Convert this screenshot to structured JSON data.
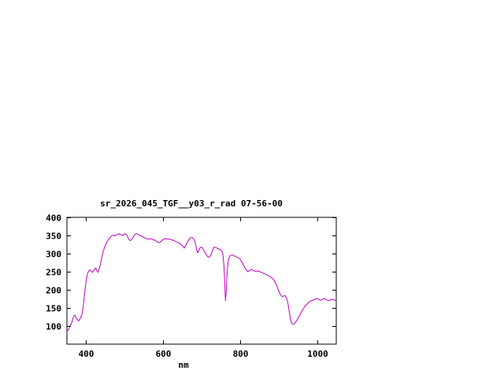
{
  "chart": {
    "line_color": "#c000c0",
    "axis_color": "#000000",
    "background": "#ffffff"
  },
  "chart_data": {
    "type": "line",
    "title": "sr_2026_045_TGF__y03_r_rad 07-56-00",
    "xlabel": "nm",
    "ylabel": "",
    "xlim": [
      350,
      1050
    ],
    "ylim": [
      50,
      400
    ],
    "xticks": [
      400,
      600,
      800,
      1000
    ],
    "yticks": [
      100,
      150,
      200,
      250,
      300,
      350,
      400
    ],
    "grid": false,
    "legend": "none",
    "series": [
      {
        "name": "sr_2026_045_TGF__y03_r_rad",
        "color": "#c000c0",
        "points": [
          [
            350,
            85
          ],
          [
            355,
            92
          ],
          [
            358,
            100
          ],
          [
            362,
            108
          ],
          [
            365,
            118
          ],
          [
            368,
            128
          ],
          [
            371,
            130
          ],
          [
            374,
            122
          ],
          [
            377,
            118
          ],
          [
            380,
            114
          ],
          [
            383,
            118
          ],
          [
            386,
            124
          ],
          [
            389,
            132
          ],
          [
            392,
            150
          ],
          [
            395,
            180
          ],
          [
            398,
            210
          ],
          [
            401,
            232
          ],
          [
            404,
            246
          ],
          [
            407,
            252
          ],
          [
            410,
            255
          ],
          [
            413,
            252
          ],
          [
            416,
            248
          ],
          [
            419,
            252
          ],
          [
            422,
            257
          ],
          [
            425,
            260
          ],
          [
            428,
            252
          ],
          [
            431,
            248
          ],
          [
            434,
            258
          ],
          [
            437,
            270
          ],
          [
            440,
            288
          ],
          [
            444,
            305
          ],
          [
            448,
            318
          ],
          [
            452,
            328
          ],
          [
            456,
            336
          ],
          [
            460,
            342
          ],
          [
            465,
            348
          ],
          [
            470,
            351
          ],
          [
            475,
            349
          ],
          [
            480,
            353
          ],
          [
            485,
            355
          ],
          [
            490,
            352
          ],
          [
            495,
            350
          ],
          [
            500,
            355
          ],
          [
            505,
            352
          ],
          [
            508,
            345
          ],
          [
            512,
            338
          ],
          [
            516,
            336
          ],
          [
            520,
            342
          ],
          [
            525,
            350
          ],
          [
            530,
            355
          ],
          [
            535,
            353
          ],
          [
            540,
            350
          ],
          [
            545,
            348
          ],
          [
            550,
            345
          ],
          [
            555,
            342
          ],
          [
            560,
            340
          ],
          [
            565,
            341
          ],
          [
            570,
            340
          ],
          [
            575,
            338
          ],
          [
            580,
            336
          ],
          [
            585,
            332
          ],
          [
            590,
            330
          ],
          [
            595,
            334
          ],
          [
            600,
            339
          ],
          [
            605,
            341
          ],
          [
            610,
            340
          ],
          [
            615,
            340
          ],
          [
            620,
            339
          ],
          [
            625,
            337
          ],
          [
            630,
            335
          ],
          [
            635,
            332
          ],
          [
            640,
            330
          ],
          [
            645,
            327
          ],
          [
            650,
            322
          ],
          [
            655,
            315
          ],
          [
            660,
            325
          ],
          [
            665,
            335
          ],
          [
            670,
            343
          ],
          [
            675,
            345
          ],
          [
            680,
            340
          ],
          [
            684,
            328
          ],
          [
            687,
            310
          ],
          [
            690,
            302
          ],
          [
            693,
            310
          ],
          [
            696,
            316
          ],
          [
            700,
            318
          ],
          [
            704,
            312
          ],
          [
            708,
            305
          ],
          [
            712,
            297
          ],
          [
            716,
            291
          ],
          [
            720,
            290
          ],
          [
            724,
            296
          ],
          [
            728,
            308
          ],
          [
            732,
            318
          ],
          [
            736,
            317
          ],
          [
            740,
            315
          ],
          [
            744,
            313
          ],
          [
            748,
            311
          ],
          [
            752,
            308
          ],
          [
            755,
            300
          ],
          [
            758,
            270
          ],
          [
            760,
            225
          ],
          [
            762,
            170
          ],
          [
            764,
            195
          ],
          [
            766,
            240
          ],
          [
            768,
            268
          ],
          [
            770,
            285
          ],
          [
            773,
            293
          ],
          [
            776,
            295
          ],
          [
            780,
            296
          ],
          [
            785,
            294
          ],
          [
            790,
            291
          ],
          [
            795,
            288
          ],
          [
            800,
            285
          ],
          [
            805,
            276
          ],
          [
            810,
            266
          ],
          [
            815,
            256
          ],
          [
            820,
            250
          ],
          [
            825,
            254
          ],
          [
            830,
            256
          ],
          [
            835,
            253
          ],
          [
            840,
            251
          ],
          [
            845,
            252
          ],
          [
            850,
            251
          ],
          [
            855,
            248
          ],
          [
            860,
            246
          ],
          [
            865,
            243
          ],
          [
            870,
            241
          ],
          [
            875,
            238
          ],
          [
            880,
            235
          ],
          [
            885,
            230
          ],
          [
            890,
            224
          ],
          [
            895,
            212
          ],
          [
            900,
            198
          ],
          [
            905,
            186
          ],
          [
            910,
            181
          ],
          [
            915,
            184
          ],
          [
            918,
            183
          ],
          [
            922,
            172
          ],
          [
            925,
            160
          ],
          [
            928,
            138
          ],
          [
            931,
            118
          ],
          [
            934,
            108
          ],
          [
            937,
            105
          ],
          [
            940,
            106
          ],
          [
            944,
            110
          ],
          [
            948,
            117
          ],
          [
            952,
            124
          ],
          [
            956,
            132
          ],
          [
            960,
            140
          ],
          [
            965,
            149
          ],
          [
            970,
            156
          ],
          [
            975,
            162
          ],
          [
            980,
            167
          ],
          [
            985,
            170
          ],
          [
            990,
            172
          ],
          [
            995,
            174
          ],
          [
            1000,
            176
          ],
          [
            1005,
            173
          ],
          [
            1010,
            171
          ],
          [
            1015,
            174
          ],
          [
            1020,
            176
          ],
          [
            1025,
            172
          ],
          [
            1030,
            170
          ],
          [
            1035,
            172
          ],
          [
            1040,
            174
          ],
          [
            1045,
            171
          ],
          [
            1050,
            172
          ]
        ]
      }
    ]
  }
}
